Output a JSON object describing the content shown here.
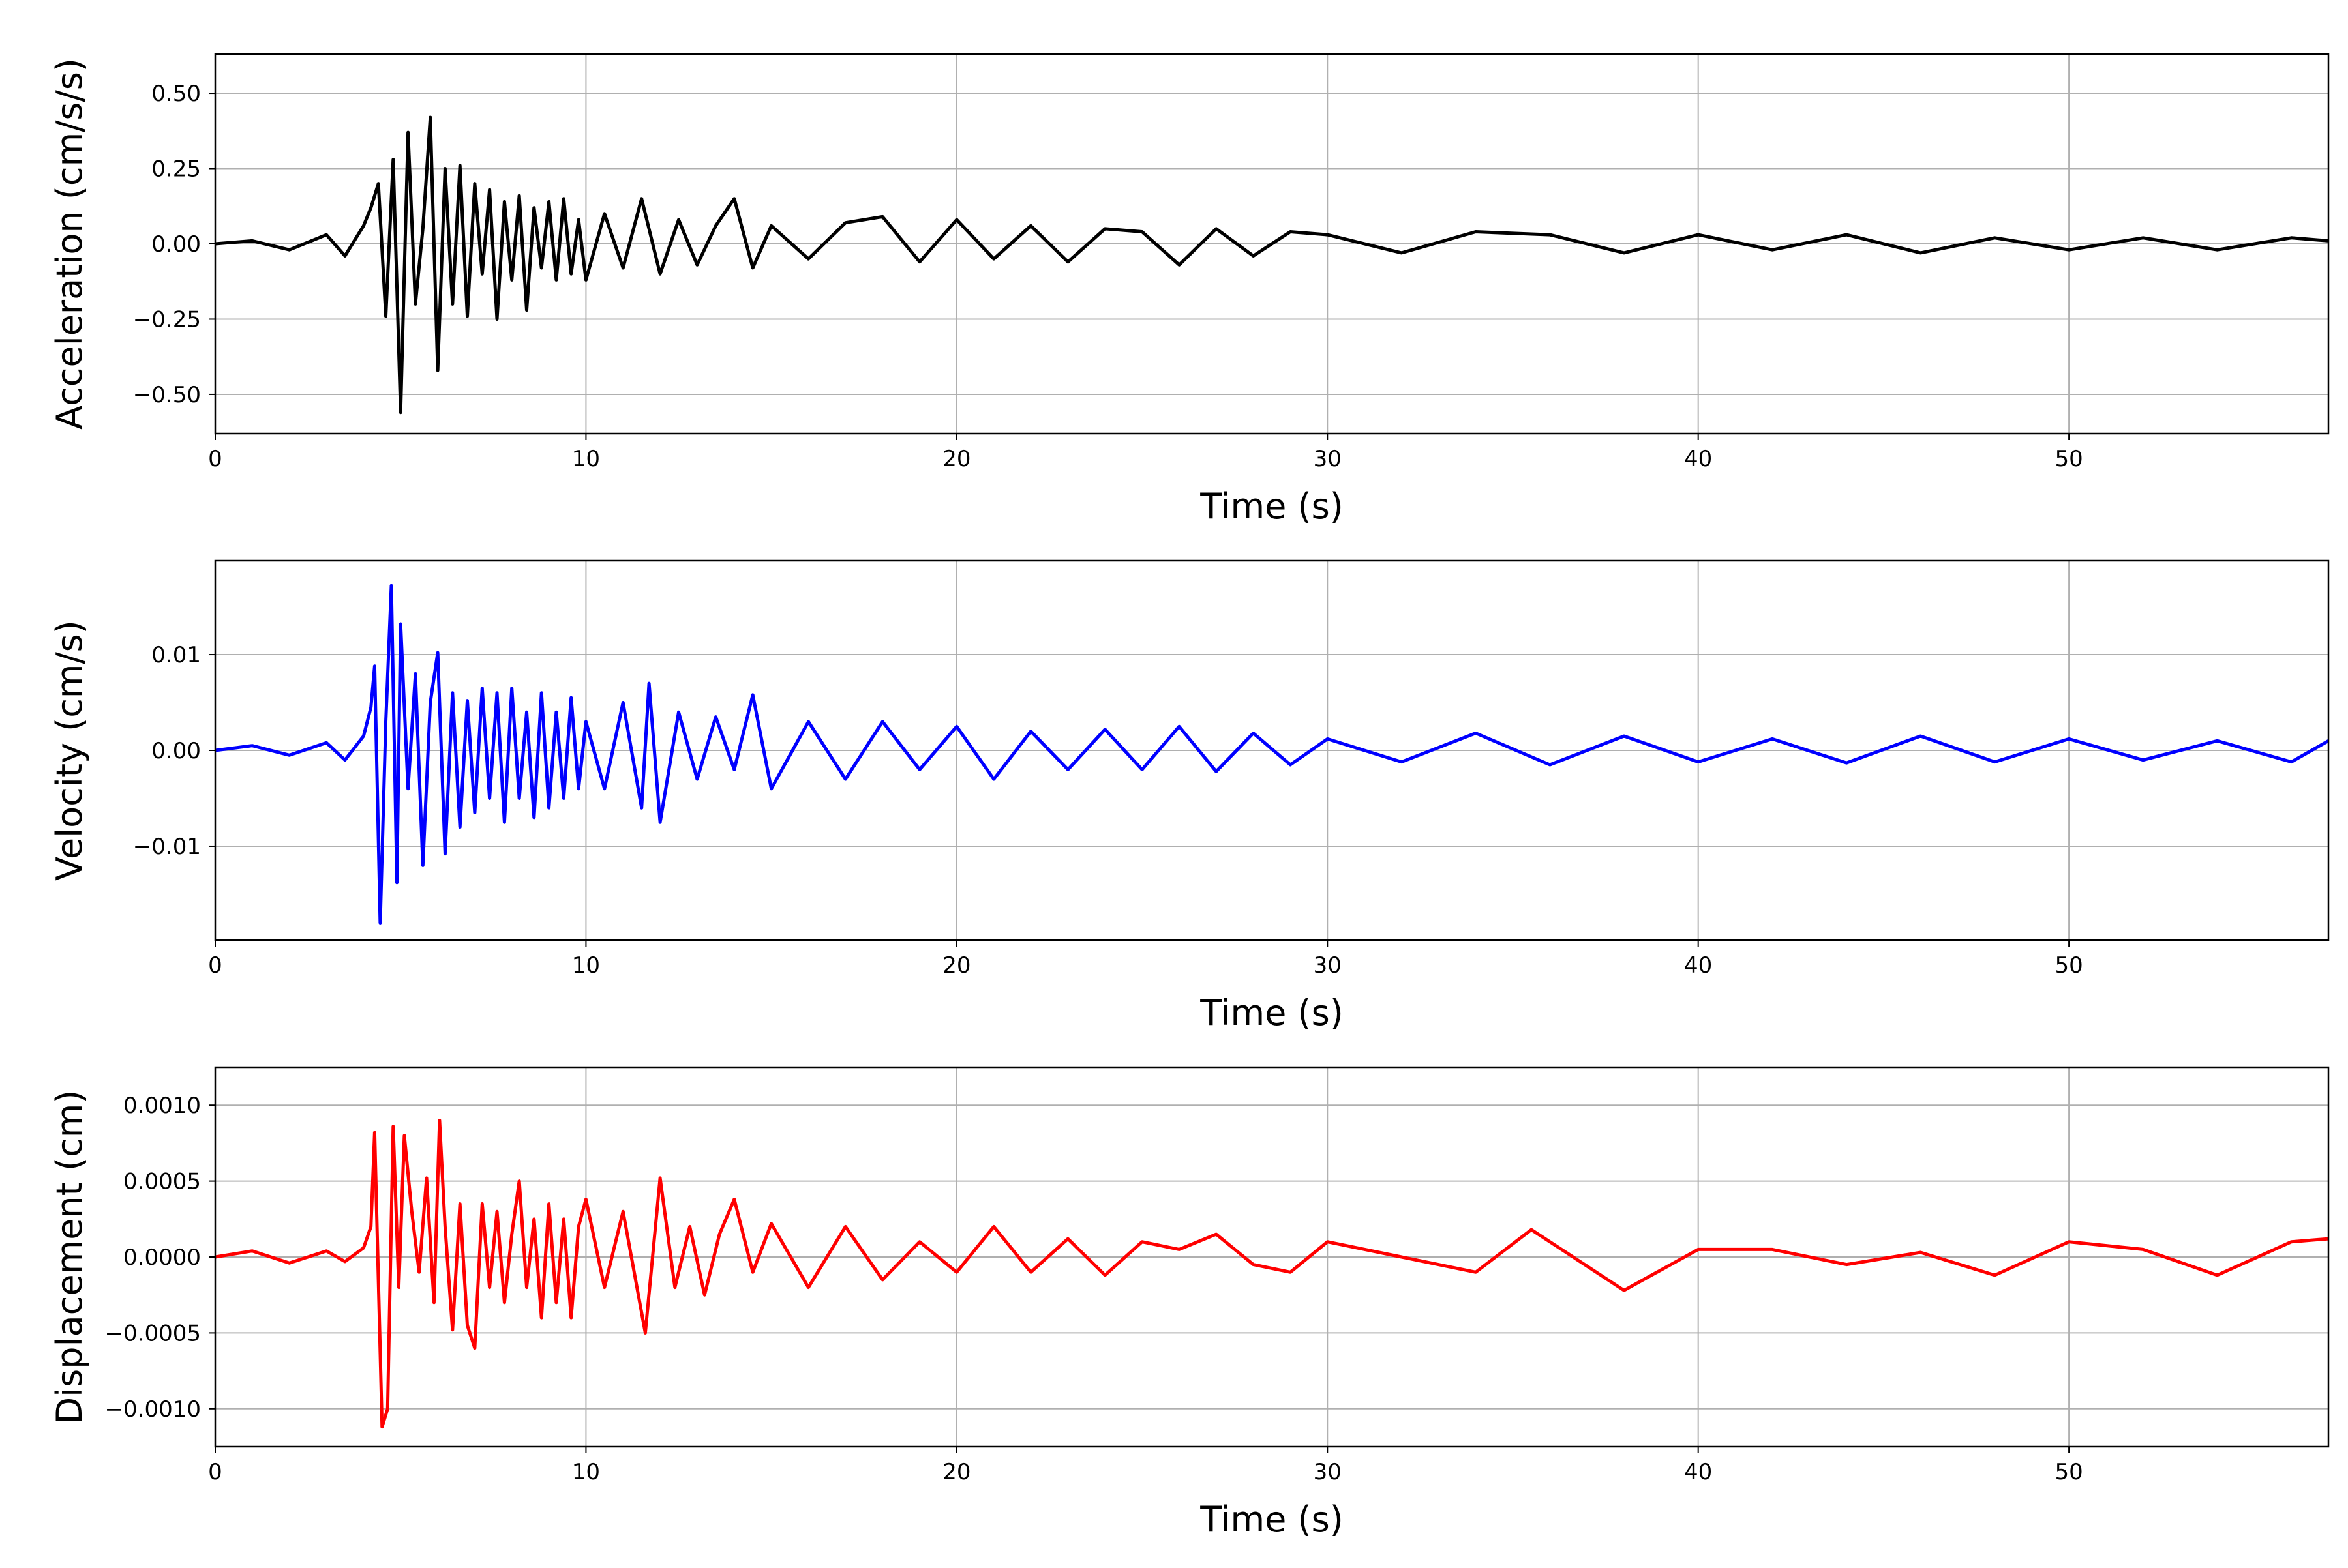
{
  "chart_data": [
    {
      "type": "line",
      "title": "",
      "xlabel": "Time (s)",
      "ylabel": "Acceleration (cm/s/s)",
      "xlim": [
        0,
        57
      ],
      "ylim": [
        -0.63,
        0.63
      ],
      "xticks": [
        0,
        10,
        20,
        30,
        40,
        50
      ],
      "xtick_labels": [
        "0",
        "10",
        "20",
        "30",
        "40",
        "50"
      ],
      "yticks": [
        -0.5,
        -0.25,
        0,
        0.25,
        0.5
      ],
      "ytick_labels": [
        "−0.50",
        "−0.25",
        "0.00",
        "0.25",
        "0.50"
      ],
      "grid": true,
      "color": "#000000",
      "series": [
        {
          "x": [
            0,
            1,
            2,
            3,
            3.5,
            4,
            4.2,
            4.4,
            4.6,
            4.8,
            5.0,
            5.2,
            5.4,
            5.6,
            5.8,
            6.0,
            6.2,
            6.4,
            6.6,
            6.8,
            7.0,
            7.2,
            7.4,
            7.6,
            7.8,
            8.0,
            8.2,
            8.4,
            8.6,
            8.8,
            9.0,
            9.2,
            9.4,
            9.6,
            9.8,
            10.0,
            10.5,
            11.0,
            11.5,
            12.0,
            12.5,
            13.0,
            13.5,
            14.0,
            14.5,
            15.0,
            16,
            17,
            18,
            19,
            20,
            21,
            22,
            23,
            24,
            25,
            26,
            27,
            28,
            29,
            30,
            32,
            34,
            36,
            38,
            40,
            42,
            44,
            46,
            48,
            50,
            52,
            54,
            56,
            57
          ],
          "y": [
            0,
            0.01,
            -0.02,
            0.03,
            -0.04,
            0.06,
            0.12,
            0.2,
            -0.24,
            0.28,
            -0.56,
            0.37,
            -0.2,
            0.05,
            0.42,
            -0.42,
            0.25,
            -0.2,
            0.26,
            -0.24,
            0.2,
            -0.1,
            0.18,
            -0.25,
            0.14,
            -0.12,
            0.16,
            -0.22,
            0.12,
            -0.08,
            0.14,
            -0.12,
            0.15,
            -0.1,
            0.08,
            -0.12,
            0.1,
            -0.08,
            0.15,
            -0.1,
            0.08,
            -0.07,
            0.06,
            0.15,
            -0.08,
            0.06,
            -0.05,
            0.07,
            0.09,
            -0.06,
            0.08,
            -0.05,
            0.06,
            -0.06,
            0.05,
            0.04,
            -0.07,
            0.05,
            -0.04,
            0.04,
            0.03,
            -0.03,
            0.04,
            0.03,
            -0.03,
            0.03,
            -0.02,
            0.03,
            -0.03,
            0.02,
            -0.02,
            0.02,
            -0.02,
            0.02,
            0.01
          ]
        }
      ]
    },
    {
      "type": "line",
      "title": "",
      "xlabel": "Time (s)",
      "ylabel": "Velocity (cm/s)",
      "xlim": [
        0,
        57
      ],
      "ylim": [
        -0.0198,
        0.0198
      ],
      "xticks": [
        0,
        10,
        20,
        30,
        40,
        50
      ],
      "xtick_labels": [
        "0",
        "10",
        "20",
        "30",
        "40",
        "50"
      ],
      "yticks": [
        -0.01,
        0,
        0.01
      ],
      "ytick_labels": [
        "−0.01",
        "0.00",
        "0.01"
      ],
      "grid": true,
      "color": "#0000ff",
      "series": [
        {
          "x": [
            0,
            1,
            2,
            3,
            3.5,
            4,
            4.2,
            4.3,
            4.45,
            4.6,
            4.75,
            4.9,
            5.0,
            5.2,
            5.4,
            5.6,
            5.8,
            6.0,
            6.2,
            6.4,
            6.6,
            6.8,
            7.0,
            7.2,
            7.4,
            7.6,
            7.8,
            8.0,
            8.2,
            8.4,
            8.6,
            8.8,
            9.0,
            9.2,
            9.4,
            9.6,
            9.8,
            10.0,
            10.5,
            11.0,
            11.5,
            11.7,
            12.0,
            12.5,
            13.0,
            13.5,
            14.0,
            14.5,
            15.0,
            16,
            17,
            18,
            19,
            20,
            21,
            22,
            23,
            24,
            25,
            26,
            27,
            28,
            29,
            30,
            32,
            34,
            36,
            38,
            40,
            42,
            44,
            46,
            48,
            50,
            52,
            54,
            56,
            57
          ],
          "y": [
            0,
            0.0005,
            -0.0005,
            0.0008,
            -0.001,
            0.0015,
            0.0045,
            0.0088,
            -0.018,
            0.003,
            0.0172,
            -0.0138,
            0.0132,
            -0.004,
            0.008,
            -0.012,
            0.005,
            0.0102,
            -0.0108,
            0.006,
            -0.008,
            0.0052,
            -0.0065,
            0.0065,
            -0.005,
            0.006,
            -0.0075,
            0.0065,
            -0.005,
            0.004,
            -0.007,
            0.006,
            -0.006,
            0.004,
            -0.005,
            0.0055,
            -0.004,
            0.003,
            -0.004,
            0.005,
            -0.006,
            0.007,
            -0.0075,
            0.004,
            -0.003,
            0.0035,
            -0.002,
            0.0058,
            -0.004,
            0.003,
            -0.003,
            0.003,
            -0.002,
            0.0025,
            -0.003,
            0.002,
            -0.002,
            0.0022,
            -0.002,
            0.0025,
            -0.0022,
            0.0018,
            -0.0015,
            0.0012,
            -0.0012,
            0.0018,
            -0.0015,
            0.0015,
            -0.0012,
            0.0012,
            -0.0013,
            0.0015,
            -0.0012,
            0.0012,
            -0.001,
            0.001,
            -0.0012,
            0.001
          ]
        }
      ]
    },
    {
      "type": "line",
      "title": "",
      "xlabel": "Time (s)",
      "ylabel": "Displacement (cm)",
      "xlim": [
        0,
        57
      ],
      "ylim": [
        -0.00125,
        0.00125
      ],
      "xticks": [
        0,
        10,
        20,
        30,
        40,
        50
      ],
      "xtick_labels": [
        "0",
        "10",
        "20",
        "30",
        "40",
        "50"
      ],
      "yticks": [
        -0.001,
        -0.0005,
        0,
        0.0005,
        0.001
      ],
      "ytick_labels": [
        "−0.0010",
        "−0.0005",
        "0.0000",
        "0.0005",
        "0.0010"
      ],
      "grid": true,
      "color": "#ff0000",
      "series": [
        {
          "x": [
            0,
            1,
            2,
            3,
            3.5,
            4.0,
            4.2,
            4.3,
            4.5,
            4.65,
            4.8,
            4.95,
            5.1,
            5.3,
            5.5,
            5.7,
            5.9,
            6.05,
            6.2,
            6.4,
            6.6,
            6.8,
            7.0,
            7.2,
            7.4,
            7.6,
            7.8,
            8.0,
            8.2,
            8.4,
            8.6,
            8.8,
            9.0,
            9.2,
            9.4,
            9.6,
            9.8,
            10.0,
            10.5,
            11.0,
            11.6,
            12.0,
            12.4,
            12.8,
            13.2,
            13.6,
            14.0,
            14.5,
            15.0,
            16,
            17,
            18,
            19,
            20,
            21,
            22,
            23,
            24,
            25,
            26,
            27,
            28,
            29,
            30,
            32,
            34,
            35.5,
            36,
            38,
            40,
            42,
            44,
            46,
            48,
            50,
            52,
            54,
            56,
            57
          ],
          "y": [
            0,
            4e-05,
            -4e-05,
            4e-05,
            -3e-05,
            6e-05,
            0.0002,
            0.00082,
            -0.00112,
            -0.001,
            0.00086,
            -0.0002,
            0.0008,
            0.0003,
            -0.0001,
            0.00052,
            -0.0003,
            0.0009,
            0.0002,
            -0.00048,
            0.00035,
            -0.00045,
            -0.0006,
            0.00035,
            -0.0002,
            0.0003,
            -0.0003,
            0.00015,
            0.0005,
            -0.0002,
            0.00025,
            -0.0004,
            0.00035,
            -0.0003,
            0.00025,
            -0.0004,
            0.0002,
            0.00038,
            -0.0002,
            0.0003,
            -0.0005,
            0.00052,
            -0.0002,
            0.0002,
            -0.00025,
            0.00015,
            0.00038,
            -0.0001,
            0.00022,
            -0.0002,
            0.0002,
            -0.00015,
            0.0001,
            -0.0001,
            0.0002,
            -0.0001,
            0.00012,
            -0.00012,
            0.0001,
            5e-05,
            0.00015,
            -5e-05,
            -0.0001,
            0.0001,
            0.0,
            -0.0001,
            0.00018,
            0.0001,
            -0.00022,
            5e-05,
            5e-05,
            -5e-05,
            3e-05,
            -0.00012,
            0.0001,
            5e-05,
            -0.00012,
            0.0001,
            0.00012
          ]
        }
      ]
    }
  ]
}
